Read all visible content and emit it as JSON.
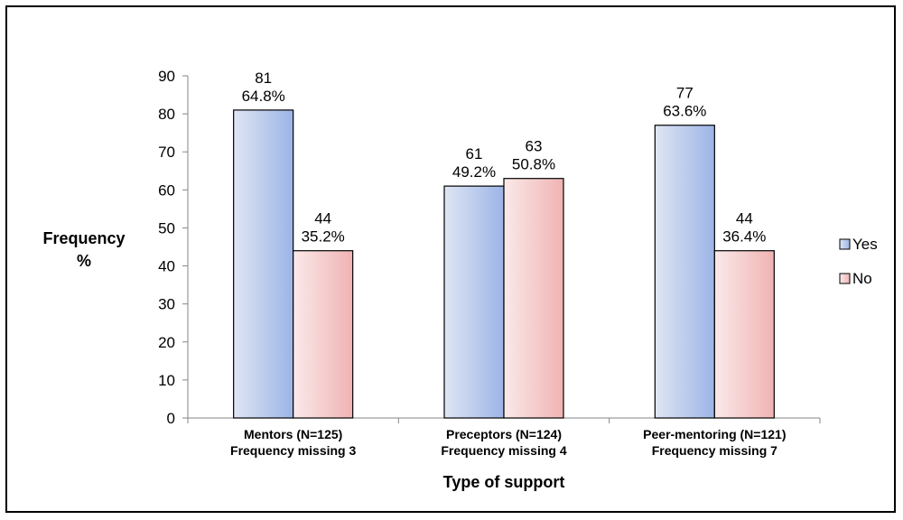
{
  "chart_data": {
    "type": "bar",
    "categories": [
      [
        "Mentors (N=125)",
        "Frequency missing 3"
      ],
      [
        "Preceptors (N=124)",
        "Frequency missing 4"
      ],
      [
        "Peer-mentoring (N=121)",
        "Frequency missing 7"
      ]
    ],
    "series": [
      {
        "name": "Yes",
        "values": [
          81,
          61,
          77
        ],
        "labels": [
          [
            "81",
            "64.8%"
          ],
          [
            "61",
            "49.2%"
          ],
          [
            "77",
            "63.6%"
          ]
        ],
        "gradient": [
          "#dfe6f4",
          "#9cb4e6"
        ]
      },
      {
        "name": "No",
        "values": [
          44,
          63,
          44
        ],
        "labels": [
          [
            "44",
            "35.2%"
          ],
          [
            "63",
            "50.8%"
          ],
          [
            "44",
            "36.4%"
          ]
        ],
        "gradient": [
          "#fbe9e9",
          "#f0b3b3"
        ]
      }
    ],
    "ylabel": [
      "Frequency",
      "%"
    ],
    "xlabel": "Type of support",
    "ylim": [
      0,
      90
    ],
    "yticks": [
      0,
      10,
      20,
      30,
      40,
      50,
      60,
      70,
      80,
      90
    ],
    "grid": false,
    "legend": "right"
  }
}
